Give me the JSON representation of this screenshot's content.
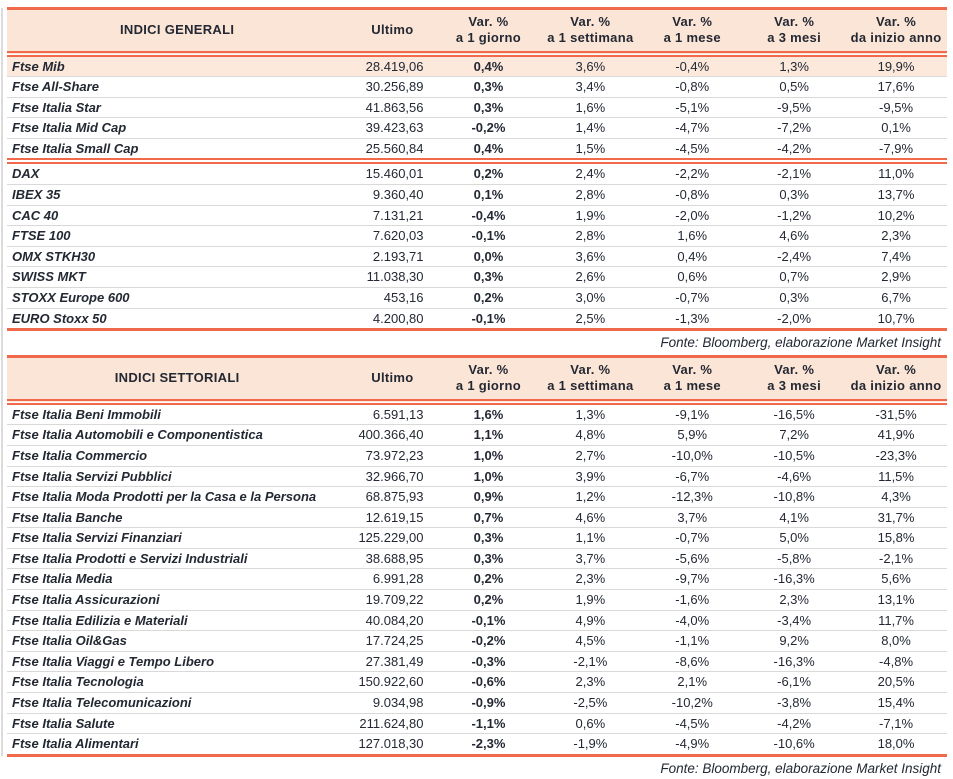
{
  "colors": {
    "accent": "#F0694B",
    "header_bg": "#FBE5D6",
    "highlight_bg": "#FCE9DC",
    "text": "#232833",
    "divider": "#D9D9D9",
    "edge_line": "#DCDCDC"
  },
  "columns": {
    "ultimo": "Ultimo",
    "var_label": "Var. %",
    "periods": [
      "a 1 giorno",
      "a 1 settimana",
      "a 1 mese",
      "a 3 mesi",
      "da inizio anno"
    ]
  },
  "source_note": "Fonte: Bloomberg, elaborazione Market Insight",
  "tables": [
    {
      "title": "INDICI GENERALI",
      "sections": [
        {
          "rows": [
            {
              "name": "Ftse Mib",
              "ultimo": "28.419,06",
              "var": [
                "0,4%",
                "3,6%",
                "-0,4%",
                "1,3%",
                "19,9%"
              ],
              "highlight": true
            },
            {
              "name": "Ftse All-Share",
              "ultimo": "30.256,89",
              "var": [
                "0,3%",
                "3,4%",
                "-0,8%",
                "0,5%",
                "17,6%"
              ]
            },
            {
              "name": "Ftse Italia Star",
              "ultimo": "41.863,56",
              "var": [
                "0,3%",
                "1,6%",
                "-5,1%",
                "-9,5%",
                "-9,5%"
              ]
            },
            {
              "name": "Ftse Italia Mid Cap",
              "ultimo": "39.423,63",
              "var": [
                "-0,2%",
                "1,4%",
                "-4,7%",
                "-7,2%",
                "0,1%"
              ]
            },
            {
              "name": "Ftse Italia Small Cap",
              "ultimo": "25.560,84",
              "var": [
                "0,4%",
                "1,5%",
                "-4,5%",
                "-4,2%",
                "-7,9%"
              ]
            }
          ]
        },
        {
          "rows": [
            {
              "name": "DAX",
              "ultimo": "15.460,01",
              "var": [
                "0,2%",
                "2,4%",
                "-2,2%",
                "-2,1%",
                "11,0%"
              ]
            },
            {
              "name": "IBEX 35",
              "ultimo": "9.360,40",
              "var": [
                "0,1%",
                "2,8%",
                "-0,8%",
                "0,3%",
                "13,7%"
              ]
            },
            {
              "name": "CAC 40",
              "ultimo": "7.131,21",
              "var": [
                "-0,4%",
                "1,9%",
                "-2,0%",
                "-1,2%",
                "10,2%"
              ]
            },
            {
              "name": "FTSE 100",
              "ultimo": "7.620,03",
              "var": [
                "-0,1%",
                "2,8%",
                "1,6%",
                "4,6%",
                "2,3%"
              ]
            },
            {
              "name": "OMX STKH30",
              "ultimo": "2.193,71",
              "var": [
                "0,0%",
                "3,6%",
                "0,4%",
                "-2,4%",
                "7,4%"
              ]
            },
            {
              "name": "SWISS MKT",
              "ultimo": "11.038,30",
              "var": [
                "0,3%",
                "2,6%",
                "0,6%",
                "0,7%",
                "2,9%"
              ]
            },
            {
              "name": "STOXX Europe 600",
              "ultimo": "453,16",
              "var": [
                "0,2%",
                "3,0%",
                "-0,7%",
                "0,3%",
                "6,7%"
              ]
            },
            {
              "name": "EURO Stoxx 50",
              "ultimo": "4.200,80",
              "var": [
                "-0,1%",
                "2,5%",
                "-1,3%",
                "-2,0%",
                "10,7%"
              ]
            }
          ]
        }
      ]
    },
    {
      "title": "INDICI SETTORIALI",
      "sections": [
        {
          "rows": [
            {
              "name": "Ftse Italia Beni Immobili",
              "ultimo": "6.591,13",
              "var": [
                "1,6%",
                "1,3%",
                "-9,1%",
                "-16,5%",
                "-31,5%"
              ]
            },
            {
              "name": "Ftse Italia Automobili e Componentistica",
              "ultimo": "400.366,40",
              "var": [
                "1,1%",
                "4,8%",
                "5,9%",
                "7,2%",
                "41,9%"
              ]
            },
            {
              "name": "Ftse Italia Commercio",
              "ultimo": "73.972,23",
              "var": [
                "1,0%",
                "2,7%",
                "-10,0%",
                "-10,5%",
                "-23,3%"
              ]
            },
            {
              "name": "Ftse Italia Servizi Pubblici",
              "ultimo": "32.966,70",
              "var": [
                "1,0%",
                "3,9%",
                "-6,7%",
                "-4,6%",
                "11,5%"
              ]
            },
            {
              "name": "Ftse Italia Moda Prodotti per la Casa e la Persona",
              "ultimo": "68.875,93",
              "var": [
                "0,9%",
                "1,2%",
                "-12,3%",
                "-10,8%",
                "4,3%"
              ]
            },
            {
              "name": "Ftse Italia Banche",
              "ultimo": "12.619,15",
              "var": [
                "0,7%",
                "4,6%",
                "3,7%",
                "4,1%",
                "31,7%"
              ]
            },
            {
              "name": "Ftse Italia Servizi Finanziari",
              "ultimo": "125.229,00",
              "var": [
                "0,3%",
                "1,1%",
                "-0,7%",
                "5,0%",
                "15,8%"
              ]
            },
            {
              "name": "Ftse Italia Prodotti e Servizi Industriali",
              "ultimo": "38.688,95",
              "var": [
                "0,3%",
                "3,7%",
                "-5,6%",
                "-5,8%",
                "-2,1%"
              ]
            },
            {
              "name": "Ftse Italia Media",
              "ultimo": "6.991,28",
              "var": [
                "0,2%",
                "2,3%",
                "-9,7%",
                "-16,3%",
                "5,6%"
              ]
            },
            {
              "name": "Ftse Italia Assicurazioni",
              "ultimo": "19.709,22",
              "var": [
                "0,2%",
                "1,9%",
                "-1,6%",
                "2,3%",
                "13,1%"
              ]
            },
            {
              "name": "Ftse Italia Edilizia e Materiali",
              "ultimo": "40.084,20",
              "var": [
                "-0,1%",
                "4,9%",
                "-4,0%",
                "-3,4%",
                "11,7%"
              ]
            },
            {
              "name": "Ftse Italia Oil&Gas",
              "ultimo": "17.724,25",
              "var": [
                "-0,2%",
                "4,5%",
                "-1,1%",
                "9,2%",
                "8,0%"
              ]
            },
            {
              "name": "Ftse Italia Viaggi e Tempo Libero",
              "ultimo": "27.381,49",
              "var": [
                "-0,3%",
                "-2,1%",
                "-8,6%",
                "-16,3%",
                "-4,8%"
              ]
            },
            {
              "name": "Ftse Italia Tecnologia",
              "ultimo": "150.922,60",
              "var": [
                "-0,6%",
                "2,3%",
                "2,1%",
                "-6,1%",
                "20,5%"
              ]
            },
            {
              "name": "Ftse Italia Telecomunicazioni",
              "ultimo": "9.034,98",
              "var": [
                "-0,9%",
                "-2,5%",
                "-10,2%",
                "-3,8%",
                "15,4%"
              ]
            },
            {
              "name": "Ftse Italia Salute",
              "ultimo": "211.624,80",
              "var": [
                "-1,1%",
                "0,6%",
                "-4,5%",
                "-4,2%",
                "-7,1%"
              ]
            },
            {
              "name": "Ftse Italia Alimentari",
              "ultimo": "127.018,30",
              "var": [
                "-2,3%",
                "-1,9%",
                "-4,9%",
                "-10,6%",
                "18,0%"
              ]
            }
          ]
        }
      ]
    }
  ]
}
